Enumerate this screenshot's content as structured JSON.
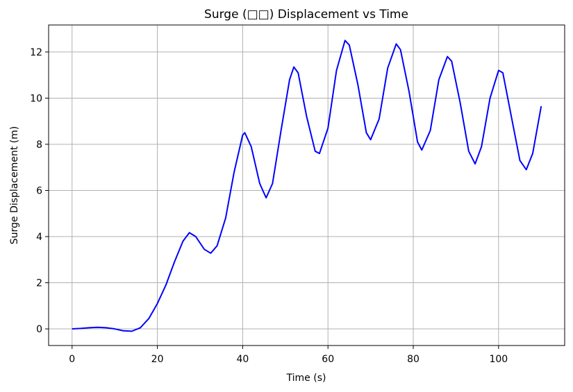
{
  "chart_data": {
    "type": "line",
    "title": "Surge (□□) Displacement vs Time",
    "xlabel": "Time (s)",
    "ylabel": "Surge Displacement (m)",
    "x": [
      0,
      2,
      4,
      6,
      8,
      10,
      12,
      14,
      16,
      18,
      20,
      22,
      24,
      26,
      27.5,
      29,
      31,
      32.5,
      34,
      36,
      38,
      40,
      40.5,
      42,
      44,
      45.5,
      47,
      49,
      51,
      52,
      53,
      55,
      57,
      58,
      60,
      62,
      64,
      65,
      67,
      69,
      70,
      72,
      74,
      76,
      77,
      79,
      81,
      82,
      84,
      86,
      88,
      89,
      91,
      93,
      94.5,
      96,
      98,
      100,
      101,
      103,
      105,
      106.5,
      108,
      110
    ],
    "series": [
      {
        "name": "Surge",
        "color": "#0000ff",
        "values": [
          0,
          0.02,
          0.05,
          0.07,
          0.05,
          0,
          -0.08,
          -0.1,
          0.05,
          0.45,
          1.1,
          1.9,
          2.9,
          3.8,
          4.17,
          4.0,
          3.45,
          3.28,
          3.6,
          4.8,
          6.8,
          8.4,
          8.5,
          7.9,
          6.3,
          5.68,
          6.3,
          8.6,
          10.8,
          11.35,
          11.1,
          9.2,
          7.7,
          7.6,
          8.7,
          11.2,
          12.5,
          12.3,
          10.6,
          8.5,
          8.2,
          9.1,
          11.3,
          12.35,
          12.1,
          10.3,
          8.1,
          7.75,
          8.6,
          10.8,
          11.8,
          11.6,
          9.8,
          7.7,
          7.15,
          7.9,
          10,
          11.2,
          11.1,
          9.2,
          7.3,
          6.9,
          7.6,
          9.65
        ]
      }
    ],
    "xlim": [
      -5.5,
      115.5
    ],
    "ylim": [
      -0.72,
      13.17
    ],
    "xticks": [
      0,
      20,
      40,
      60,
      80,
      100
    ],
    "yticks": [
      0,
      2,
      4,
      6,
      8,
      10,
      12
    ],
    "grid": true
  }
}
